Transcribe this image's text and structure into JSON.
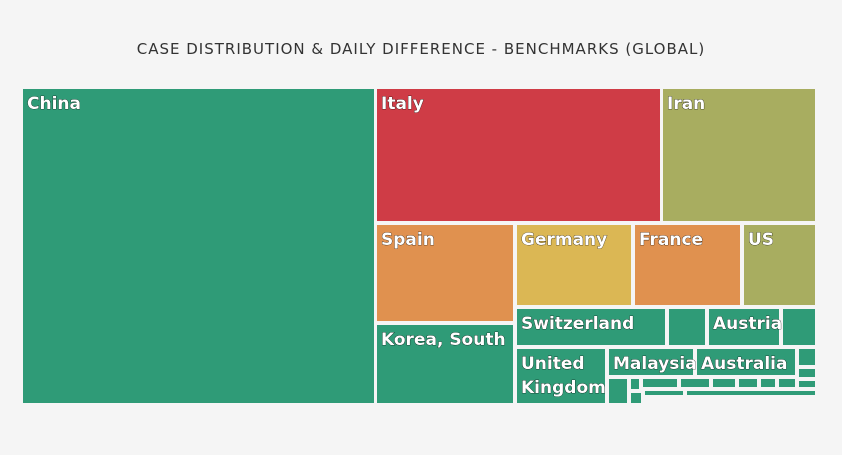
{
  "chart_data": {
    "type": "treemap",
    "title": "CASE DISTRIBUTION & DAILY DIFFERENCE - BENCHMARKS (GLOBAL)",
    "colors": {
      "green": "#2f9b77",
      "red": "#cf3c46",
      "olive": "#a8ad60",
      "orange": "#e0914f",
      "yellow": "#dbb754",
      "border": "#f5f5f5"
    },
    "nodes": [
      {
        "label": "China",
        "color": "green",
        "show_label": true
      },
      {
        "label": "Italy",
        "color": "red",
        "show_label": true
      },
      {
        "label": "Iran",
        "color": "olive",
        "show_label": true
      },
      {
        "label": "Spain",
        "color": "orange",
        "show_label": true
      },
      {
        "label": "Germany",
        "color": "yellow",
        "show_label": true
      },
      {
        "label": "France",
        "color": "orange",
        "show_label": true
      },
      {
        "label": "US",
        "color": "olive",
        "show_label": true
      },
      {
        "label": "Korea, South",
        "color": "green",
        "show_label": true
      },
      {
        "label": "Switzerland",
        "color": "green",
        "show_label": true
      },
      {
        "label": "Austria",
        "color": "green",
        "show_label": true
      },
      {
        "label": "United Kingdom",
        "color": "green",
        "show_label": true
      },
      {
        "label": "Malaysia",
        "color": "green",
        "show_label": true
      },
      {
        "label": "Australia",
        "color": "green",
        "show_label": true
      },
      {
        "label": "",
        "color": "green",
        "show_label": false
      },
      {
        "label": "",
        "color": "green",
        "show_label": false
      },
      {
        "label": "",
        "color": "green",
        "show_label": false
      },
      {
        "label": "",
        "color": "green",
        "show_label": false
      },
      {
        "label": "",
        "color": "green",
        "show_label": false
      },
      {
        "label": "",
        "color": "green",
        "show_label": false
      },
      {
        "label": "",
        "color": "green",
        "show_label": false
      },
      {
        "label": "",
        "color": "green",
        "show_label": false
      },
      {
        "label": "",
        "color": "green",
        "show_label": false
      },
      {
        "label": "",
        "color": "green",
        "show_label": false
      },
      {
        "label": "",
        "color": "green",
        "show_label": false
      },
      {
        "label": "",
        "color": "green",
        "show_label": false
      },
      {
        "label": "",
        "color": "green",
        "show_label": false
      },
      {
        "label": "",
        "color": "green",
        "show_label": false
      },
      {
        "label": "",
        "color": "green",
        "show_label": false
      },
      {
        "label": "",
        "color": "green",
        "show_label": false
      }
    ]
  }
}
